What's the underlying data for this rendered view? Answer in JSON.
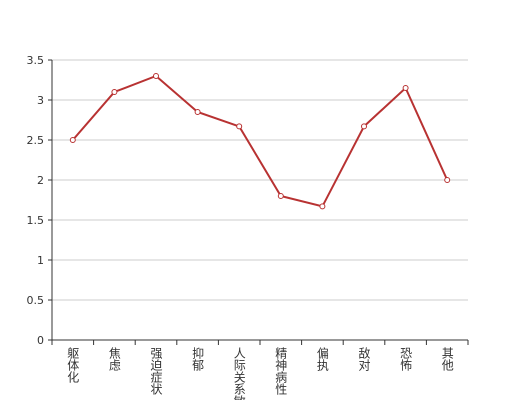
{
  "chart_data": {
    "type": "line",
    "categories": [
      "躯体化",
      "焦虑",
      "强迫症状",
      "抑郁",
      "人际关系敏感",
      "精神病性",
      "偏执",
      "敌对",
      "恐怖",
      "其他"
    ],
    "values": [
      2.5,
      3.1,
      3.3,
      2.85,
      2.67,
      1.8,
      1.67,
      2.67,
      3.15,
      2.0
    ],
    "color": "#b83232",
    "ylim": [
      0,
      3.5
    ],
    "yticks": [
      0,
      0.5,
      1,
      1.5,
      2,
      2.5,
      3,
      3.5
    ],
    "grid": true
  }
}
